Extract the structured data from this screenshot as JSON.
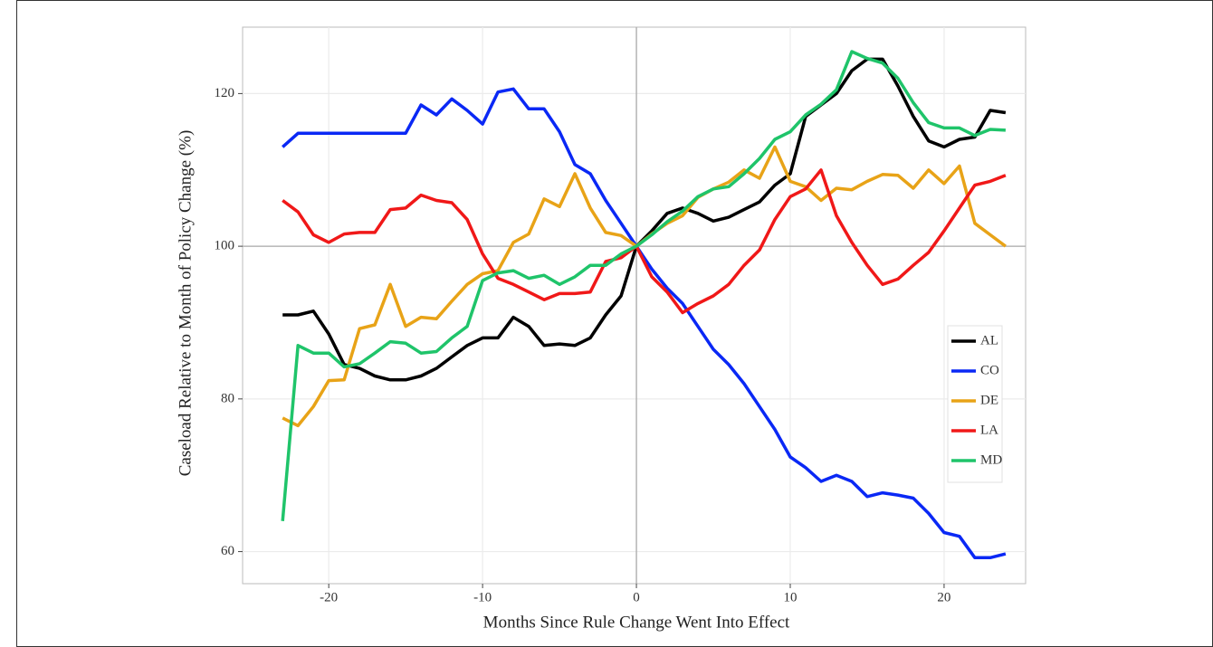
{
  "chart_data": {
    "type": "line",
    "xlabel": "Months Since Rule Change Went Into Effect",
    "ylabel": "Caseload Relative to Month of Policy Change (%)",
    "x": [
      -23,
      -22,
      -21,
      -20,
      -19,
      -18,
      -17,
      -16,
      -15,
      -14,
      -13,
      -12,
      -11,
      -10,
      -9,
      -8,
      -7,
      -6,
      -5,
      -4,
      -3,
      -2,
      -1,
      0,
      1,
      2,
      3,
      4,
      5,
      6,
      7,
      8,
      9,
      10,
      11,
      12,
      13,
      14,
      15,
      16,
      17,
      18,
      19,
      20,
      21,
      22,
      23,
      24
    ],
    "series": [
      {
        "name": "AL",
        "color": "#000000",
        "values": [
          91,
          91,
          91.5,
          88.5,
          84.5,
          84,
          83,
          82.5,
          82.5,
          83,
          84,
          85.5,
          87,
          88,
          88,
          90.7,
          89.5,
          87,
          87.2,
          87,
          88,
          91,
          93.5,
          100,
          102,
          104.3,
          105,
          104.3,
          103.3,
          103.8,
          104.8,
          105.8,
          108,
          109.5,
          117,
          118.5,
          120,
          123,
          124.5,
          124.5,
          121,
          117,
          113.8,
          113,
          114,
          114.3,
          117.8,
          117.5
        ]
      },
      {
        "name": "CO",
        "color": "#0a28f5",
        "values": [
          113,
          114.8,
          114.8,
          114.8,
          114.8,
          114.8,
          114.8,
          114.8,
          114.8,
          118.5,
          117.2,
          119.3,
          117.8,
          116,
          120.2,
          120.6,
          118,
          118,
          115,
          110.7,
          109.5,
          106,
          103,
          100,
          97,
          94.5,
          92.5,
          89.5,
          86.5,
          84.5,
          82,
          79,
          76,
          72.4,
          71,
          69.2,
          70,
          69.2,
          67.2,
          67.7,
          67.4,
          67,
          65,
          62.5,
          62,
          59.2,
          59.2,
          59.7
        ]
      },
      {
        "name": "DE",
        "color": "#e8a317",
        "values": [
          77.5,
          76.5,
          79,
          82.4,
          82.5,
          89.2,
          89.7,
          95,
          89.5,
          90.7,
          90.5,
          92.8,
          95,
          96.4,
          96.8,
          100.5,
          101.6,
          106.2,
          105.2,
          109.5,
          105,
          101.8,
          101.4,
          100,
          101.6,
          103,
          104,
          106.4,
          107.5,
          108.4,
          110,
          108.9,
          113,
          108.5,
          107.8,
          106,
          107.6,
          107.4,
          108.5,
          109.4,
          109.3,
          107.6,
          110,
          108.2,
          110.5,
          103,
          101.5,
          100
        ]
      },
      {
        "name": "LA",
        "color": "#f01818",
        "values": [
          106,
          104.5,
          101.5,
          100.5,
          101.6,
          101.8,
          101.8,
          104.8,
          105,
          106.7,
          106,
          105.7,
          103.5,
          99,
          95.8,
          95,
          94,
          93,
          93.8,
          93.8,
          94,
          98,
          98.5,
          100,
          96,
          94,
          91.3,
          92.5,
          93.5,
          95,
          97.5,
          99.5,
          103.5,
          106.5,
          107.5,
          110,
          104,
          100.5,
          97.5,
          95,
          95.7,
          97.5,
          99.2,
          102,
          105,
          108,
          108.5,
          109.3
        ]
      },
      {
        "name": "MD",
        "color": "#1fc46a",
        "values": [
          64,
          87,
          86,
          86,
          84.2,
          84.6,
          86,
          87.5,
          87.3,
          86,
          86.2,
          88,
          89.5,
          95.5,
          96.5,
          96.8,
          95.8,
          96.2,
          95,
          96,
          97.5,
          97.5,
          99,
          100,
          101.5,
          103.2,
          104.6,
          106.5,
          107.5,
          107.8,
          109.5,
          111.5,
          114,
          115,
          117.2,
          118.6,
          120.5,
          125.5,
          124.6,
          124,
          122,
          118.8,
          116.2,
          115.5,
          115.5,
          114.5,
          115.3,
          115.2
        ]
      }
    ],
    "xlim": [
      -25.6,
      25.3
    ],
    "xticks": [
      -20,
      -10,
      0,
      10,
      20
    ],
    "ylim": [
      55.8,
      128.7
    ],
    "yticks": [
      60,
      80,
      100,
      120
    ],
    "grid": true,
    "hline": 100,
    "vline": 0,
    "legend": "right"
  }
}
